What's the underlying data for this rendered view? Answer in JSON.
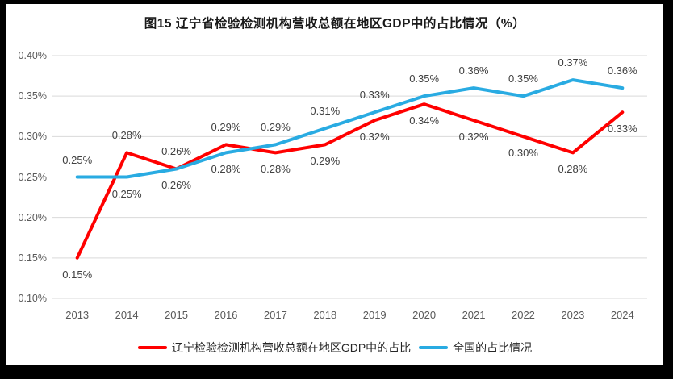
{
  "colors": {
    "frame": "#000000",
    "background": "#ffffff",
    "grid": "#d9d9d9",
    "axis_text": "#595959",
    "label_text": "#404040",
    "liaoning_red": "#ff0000",
    "national_blue": "#29abe2"
  },
  "chart_data": {
    "type": "line",
    "title": "图15 辽宁省检验检测机构营收总额在地区GDP中的占比情况（%）",
    "categories": [
      "2013",
      "2014",
      "2015",
      "2016",
      "2017",
      "2018",
      "2019",
      "2020",
      "2021",
      "2022",
      "2023",
      "2024"
    ],
    "y_ticks": [
      "0.40%",
      "0.35%",
      "0.30%",
      "0.25%",
      "0.20%",
      "0.15%",
      "0.10%"
    ],
    "ylim": [
      0.1,
      0.4
    ],
    "y_step": 0.05,
    "grid": true,
    "legend_position": "bottom",
    "series": [
      {
        "key": "liaoning",
        "name": "辽宁检验检测机构营收总额在地区GDP中的占比",
        "color": "#ff0000",
        "values": [
          0.15,
          0.28,
          0.26,
          0.29,
          0.28,
          0.29,
          0.32,
          0.34,
          0.32,
          0.3,
          0.28,
          0.33
        ],
        "labels": [
          "0.15%",
          "0.28%",
          "0.26%",
          "0.29%",
          "0.28%",
          "0.29%",
          "0.32%",
          "0.34%",
          "0.32%",
          "0.30%",
          "0.28%",
          "0.33%"
        ],
        "label_side": [
          "below",
          "above",
          "above",
          "above",
          "below",
          "below",
          "below",
          "below",
          "below",
          "below",
          "below",
          "below"
        ]
      },
      {
        "key": "national",
        "name": "全国的占比情况",
        "color": "#29abe2",
        "values": [
          0.25,
          0.25,
          0.26,
          0.28,
          0.29,
          0.31,
          0.33,
          0.35,
          0.36,
          0.35,
          0.37,
          0.36
        ],
        "labels": [
          "0.25%",
          "0.25%",
          "0.26%",
          "0.28%",
          "0.29%",
          "0.31%",
          "0.33%",
          "0.35%",
          "0.36%",
          "0.35%",
          "0.37%",
          "0.36%"
        ],
        "label_side": [
          "above",
          "below",
          "below",
          "below",
          "above",
          "above",
          "above",
          "above",
          "above",
          "above",
          "above",
          "above"
        ]
      }
    ]
  }
}
